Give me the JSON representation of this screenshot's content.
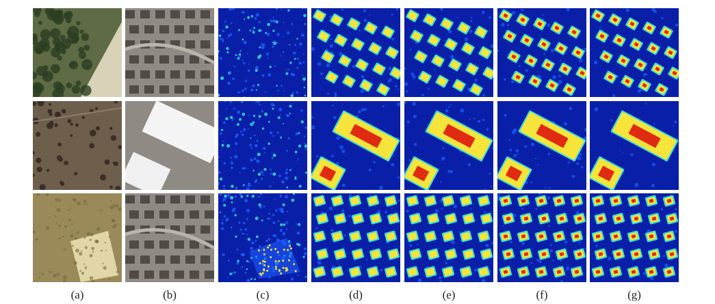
{
  "figure": {
    "rows": 3,
    "columns": [
      {
        "label": "(a)",
        "kind": "satellite-rural"
      },
      {
        "label": "(b)",
        "kind": "satellite-urban"
      },
      {
        "label": "(c)",
        "kind": "heatmap-noisy"
      },
      {
        "label": "(d)",
        "kind": "heatmap"
      },
      {
        "label": "(e)",
        "kind": "heatmap"
      },
      {
        "label": "(f)",
        "kind": "heatmap"
      },
      {
        "label": "(g)",
        "kind": "heatmap-sharp"
      }
    ]
  },
  "colors": {
    "heatmap_background": "#0a1fa8",
    "heatmap_low": "#1d5cff",
    "heatmap_mid": "#36e0d8",
    "heatmap_high": "#f6e43a",
    "heatmap_peak": "#e02a12"
  }
}
